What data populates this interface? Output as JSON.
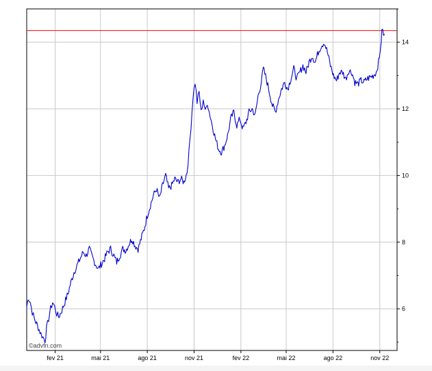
{
  "chart_data": {
    "type": "line",
    "title": "",
    "xlabel": "",
    "ylabel": "",
    "x_ticks": [
      "fev 21",
      "mai 21",
      "ago 21",
      "nov 21",
      "fev 22",
      "mai 22",
      "ago 22",
      "nov 22"
    ],
    "y_ticks": [
      "6",
      "8",
      "10",
      "12",
      "14"
    ],
    "x_range": [
      "2020-12-07",
      "2022-12-05"
    ],
    "ylim": [
      4.75,
      15.0
    ],
    "grid": true,
    "reference_line": {
      "value": 14.35,
      "color": "#ff0000"
    },
    "series": [
      {
        "color": "#0000cc",
        "points": [
          [
            "2020-12-07",
            6.05
          ],
          [
            "2020-12-10",
            6.35
          ],
          [
            "2020-12-14",
            6.2
          ],
          [
            "2020-12-18",
            5.9
          ],
          [
            "2020-12-22",
            5.7
          ],
          [
            "2020-12-28",
            5.5
          ],
          [
            "2021-01-04",
            5.25
          ],
          [
            "2021-01-08",
            5.15
          ],
          [
            "2021-01-12",
            5.05
          ],
          [
            "2021-01-15",
            5.4
          ],
          [
            "2021-01-19",
            5.7
          ],
          [
            "2021-01-23",
            6.0
          ],
          [
            "2021-01-27",
            6.2
          ],
          [
            "2021-01-31",
            6.05
          ],
          [
            "2021-02-04",
            5.85
          ],
          [
            "2021-02-08",
            5.75
          ],
          [
            "2021-02-14",
            5.95
          ],
          [
            "2021-02-20",
            6.2
          ],
          [
            "2021-02-26",
            6.45
          ],
          [
            "2021-03-04",
            6.8
          ],
          [
            "2021-03-10",
            7.1
          ],
          [
            "2021-03-16",
            7.3
          ],
          [
            "2021-03-22",
            7.5
          ],
          [
            "2021-03-28",
            7.7
          ],
          [
            "2021-04-03",
            7.6
          ],
          [
            "2021-04-09",
            7.8
          ],
          [
            "2021-04-15",
            7.55
          ],
          [
            "2021-04-21",
            7.35
          ],
          [
            "2021-04-27",
            7.2
          ],
          [
            "2021-05-03",
            7.35
          ],
          [
            "2021-05-09",
            7.5
          ],
          [
            "2021-05-15",
            7.7
          ],
          [
            "2021-05-21",
            7.8
          ],
          [
            "2021-05-27",
            7.6
          ],
          [
            "2021-06-02",
            7.4
          ],
          [
            "2021-06-08",
            7.6
          ],
          [
            "2021-06-14",
            7.8
          ],
          [
            "2021-06-20",
            7.75
          ],
          [
            "2021-06-26",
            7.95
          ],
          [
            "2021-07-02",
            8.1
          ],
          [
            "2021-07-08",
            7.9
          ],
          [
            "2021-07-14",
            7.8
          ],
          [
            "2021-07-20",
            8.1
          ],
          [
            "2021-07-26",
            8.4
          ],
          [
            "2021-08-01",
            8.8
          ],
          [
            "2021-08-07",
            9.1
          ],
          [
            "2021-08-13",
            9.4
          ],
          [
            "2021-08-19",
            9.6
          ],
          [
            "2021-08-25",
            9.3
          ],
          [
            "2021-08-31",
            9.7
          ],
          [
            "2021-09-06",
            10.0
          ],
          [
            "2021-09-12",
            9.6
          ],
          [
            "2021-09-18",
            9.7
          ],
          [
            "2021-09-24",
            9.9
          ],
          [
            "2021-09-30",
            9.8
          ],
          [
            "2021-10-06",
            9.9
          ],
          [
            "2021-10-12",
            9.8
          ],
          [
            "2021-10-18",
            10.1
          ],
          [
            "2021-10-22",
            10.7
          ],
          [
            "2021-10-26",
            11.5
          ],
          [
            "2021-10-30",
            12.4
          ],
          [
            "2021-11-03",
            12.8
          ],
          [
            "2021-11-07",
            12.2
          ],
          [
            "2021-11-11",
            12.5
          ],
          [
            "2021-11-15",
            11.9
          ],
          [
            "2021-11-19",
            12.3
          ],
          [
            "2021-11-23",
            11.9
          ],
          [
            "2021-11-27",
            12.2
          ],
          [
            "2021-12-01",
            11.9
          ],
          [
            "2021-12-07",
            11.5
          ],
          [
            "2021-12-13",
            11.1
          ],
          [
            "2021-12-19",
            10.8
          ],
          [
            "2021-12-25",
            10.7
          ],
          [
            "2021-12-31",
            10.9
          ],
          [
            "2022-01-06",
            11.2
          ],
          [
            "2022-01-12",
            11.7
          ],
          [
            "2022-01-18",
            11.9
          ],
          [
            "2022-01-24",
            11.5
          ],
          [
            "2022-01-30",
            11.7
          ],
          [
            "2022-02-05",
            11.4
          ],
          [
            "2022-02-11",
            11.6
          ],
          [
            "2022-02-17",
            11.9
          ],
          [
            "2022-02-23",
            12.0
          ],
          [
            "2022-03-01",
            11.8
          ],
          [
            "2022-03-07",
            12.4
          ],
          [
            "2022-03-13",
            12.8
          ],
          [
            "2022-03-17",
            13.2
          ],
          [
            "2022-03-23",
            12.9
          ],
          [
            "2022-03-29",
            12.5
          ],
          [
            "2022-04-04",
            12.1
          ],
          [
            "2022-04-10",
            11.9
          ],
          [
            "2022-04-16",
            12.3
          ],
          [
            "2022-04-22",
            12.6
          ],
          [
            "2022-04-28",
            12.8
          ],
          [
            "2022-05-04",
            12.6
          ],
          [
            "2022-05-10",
            12.9
          ],
          [
            "2022-05-16",
            13.2
          ],
          [
            "2022-05-22",
            12.9
          ],
          [
            "2022-05-28",
            13.1
          ],
          [
            "2022-06-03",
            13.3
          ],
          [
            "2022-06-09",
            13.1
          ],
          [
            "2022-06-15",
            13.4
          ],
          [
            "2022-06-21",
            13.6
          ],
          [
            "2022-06-27",
            13.4
          ],
          [
            "2022-07-03",
            13.7
          ],
          [
            "2022-07-09",
            13.9
          ],
          [
            "2022-07-15",
            14.0
          ],
          [
            "2022-07-21",
            13.7
          ],
          [
            "2022-07-27",
            13.3
          ],
          [
            "2022-08-02",
            13.0
          ],
          [
            "2022-08-08",
            12.85
          ],
          [
            "2022-08-14",
            13.1
          ],
          [
            "2022-08-20",
            13.1
          ],
          [
            "2022-08-26",
            12.9
          ],
          [
            "2022-09-01",
            13.15
          ],
          [
            "2022-09-07",
            13.1
          ],
          [
            "2022-09-13",
            12.8
          ],
          [
            "2022-09-19",
            12.75
          ],
          [
            "2022-09-25",
            12.85
          ],
          [
            "2022-10-01",
            12.8
          ],
          [
            "2022-10-07",
            12.9
          ],
          [
            "2022-10-13",
            12.95
          ],
          [
            "2022-10-19",
            13.0
          ],
          [
            "2022-10-25",
            13.1
          ],
          [
            "2022-10-31",
            13.5
          ],
          [
            "2022-11-04",
            14.1
          ],
          [
            "2022-11-06",
            14.45
          ],
          [
            "2022-11-08",
            14.2
          ],
          [
            "2022-11-10",
            14.25
          ]
        ]
      }
    ]
  },
  "watermark": "©advfn.com"
}
